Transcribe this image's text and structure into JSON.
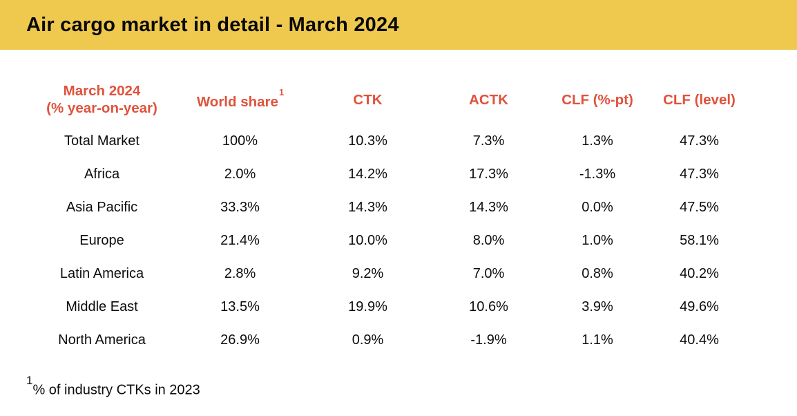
{
  "banner": {
    "title": "Air cargo market in detail - March 2024",
    "background_color": "#EFC94E",
    "title_color": "#0a0a0a"
  },
  "table": {
    "header_color": "#E0523C",
    "body_text_color": "#0c0c0c",
    "header": {
      "region_line1": "March 2024",
      "region_line2": "(% year-on-year)",
      "world_share": "World share",
      "world_share_superscript": "1",
      "ctk": "CTK",
      "actk": "ACTK",
      "clf_pt": "CLF (%-pt)",
      "clf_level": "CLF (level)"
    }
  },
  "footnote": {
    "superscript": "1",
    "text": "% of industry CTKs in 2023"
  },
  "chart_data": {
    "type": "table",
    "title": "Air cargo market in detail - March 2024",
    "columns": [
      "March 2024 (% year-on-year)",
      "World share¹",
      "CTK",
      "ACTK",
      "CLF (%-pt)",
      "CLF (level)"
    ],
    "rows": [
      [
        "Total Market",
        "100%",
        "10.3%",
        "7.3%",
        "1.3%",
        "47.3%"
      ],
      [
        "Africa",
        "2.0%",
        "14.2%",
        "17.3%",
        "-1.3%",
        "47.3%"
      ],
      [
        "Asia Pacific",
        "33.3%",
        "14.3%",
        "14.3%",
        "0.0%",
        "47.5%"
      ],
      [
        "Europe",
        "21.4%",
        "10.0%",
        "8.0%",
        "1.0%",
        "58.1%"
      ],
      [
        "Latin America",
        "2.8%",
        "9.2%",
        "7.0%",
        "0.8%",
        "40.2%"
      ],
      [
        "Middle East",
        "13.5%",
        "19.9%",
        "10.6%",
        "3.9%",
        "49.6%"
      ],
      [
        "North America",
        "26.9%",
        "0.9%",
        "-1.9%",
        "1.1%",
        "40.4%"
      ]
    ],
    "footnote": "¹ % of industry CTKs in 2023"
  }
}
